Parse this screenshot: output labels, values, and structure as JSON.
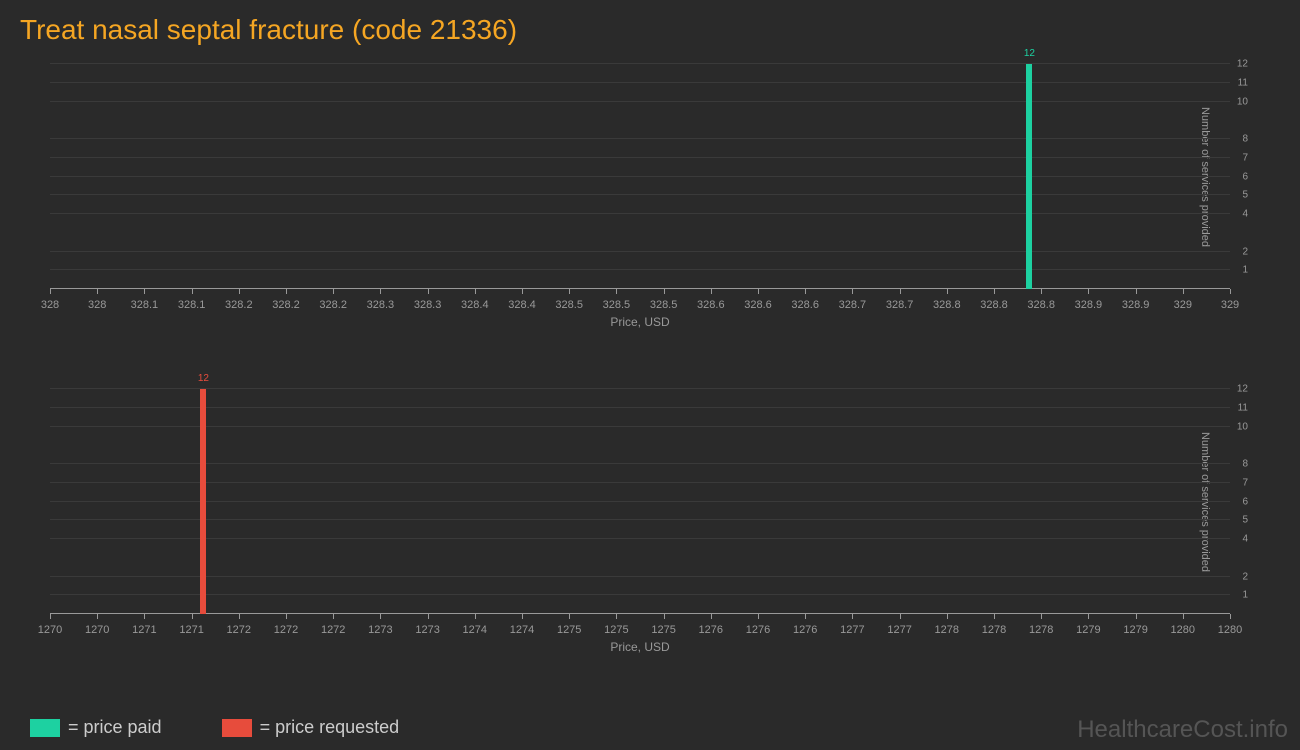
{
  "title": "Treat nasal septal fracture (code 21336)",
  "watermark": "HealthcareCost.info",
  "colors": {
    "background": "#2a2a2a",
    "title": "#f5a623",
    "grid": "#3a3a3a",
    "axis": "#999999",
    "text": "#999999",
    "price_paid": "#1dd1a1",
    "price_requested": "#e74c3c"
  },
  "charts": [
    {
      "type": "bar",
      "x_title": "Price, USD",
      "y_title": "Number of services provided",
      "x_min": 328,
      "x_max": 329,
      "x_ticks": [
        "328",
        "328",
        "328.1",
        "328.1",
        "328.2",
        "328.2",
        "328.2",
        "328.3",
        "328.3",
        "328.4",
        "328.4",
        "328.5",
        "328.5",
        "328.5",
        "328.6",
        "328.6",
        "328.6",
        "328.7",
        "328.7",
        "328.8",
        "328.8",
        "328.8",
        "328.9",
        "328.9",
        "329",
        "329"
      ],
      "y_ticks": [
        1,
        2,
        4,
        5,
        6,
        7,
        8,
        10,
        11,
        12
      ],
      "y_max": 12,
      "bar_x": 328.83,
      "bar_value": 12,
      "bar_color": "#1dd1a1",
      "bar_label": "12"
    },
    {
      "type": "bar",
      "x_title": "Price, USD",
      "y_title": "Number of services provided",
      "x_min": 1270,
      "x_max": 1280,
      "x_ticks": [
        "1270",
        "1270",
        "1271",
        "1271",
        "1272",
        "1272",
        "1272",
        "1273",
        "1273",
        "1274",
        "1274",
        "1275",
        "1275",
        "1275",
        "1276",
        "1276",
        "1276",
        "1277",
        "1277",
        "1278",
        "1278",
        "1278",
        "1279",
        "1279",
        "1280",
        "1280"
      ],
      "y_ticks": [
        1,
        2,
        4,
        5,
        6,
        7,
        8,
        10,
        11,
        12
      ],
      "y_max": 12,
      "bar_x": 1271.3,
      "bar_value": 12,
      "bar_color": "#e74c3c",
      "bar_label": "12"
    }
  ],
  "legend": [
    {
      "color": "#1dd1a1",
      "label": "= price paid"
    },
    {
      "color": "#e74c3c",
      "label": "= price requested"
    }
  ]
}
